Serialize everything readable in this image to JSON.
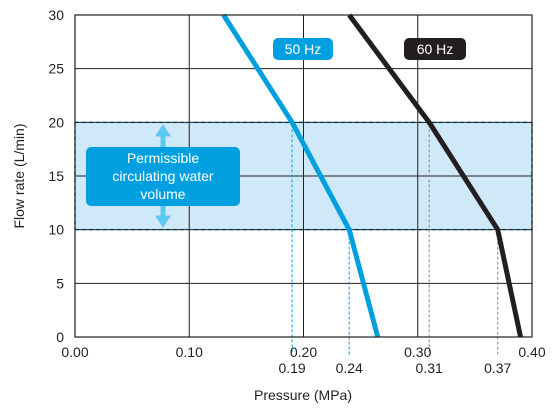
{
  "chart_data": {
    "type": "line",
    "xlabel": "Pressure (MPa)",
    "ylabel": "Flow rate (L/min)",
    "xlim": [
      0.0,
      0.4
    ],
    "ylim": [
      0,
      30
    ],
    "x_ticks": [
      "0.00",
      "0.10",
      "0.20",
      "0.30",
      "0.40"
    ],
    "y_ticks": [
      "0",
      "5",
      "10",
      "15",
      "20",
      "25",
      "30"
    ],
    "x_ref_labels": [
      "0.19",
      "0.24",
      "0.31",
      "0.37"
    ],
    "x_ref_values": [
      0.19,
      0.24,
      0.31,
      0.37
    ],
    "grid": true,
    "band": {
      "y_range": [
        10,
        20
      ],
      "label_lines": [
        "Permissible",
        "circulating water",
        "volume"
      ],
      "color": "#cfe9f8",
      "label_bg": "#00a0e0"
    },
    "series": [
      {
        "name": "50 Hz",
        "color": "#00a0e0",
        "x": [
          0.13,
          0.19,
          0.24,
          0.265
        ],
        "y": [
          30,
          20,
          10,
          0
        ]
      },
      {
        "name": "60 Hz",
        "color": "#231f20",
        "x": [
          0.24,
          0.31,
          0.37,
          0.39
        ],
        "y": [
          30,
          20,
          10,
          0
        ]
      }
    ]
  }
}
